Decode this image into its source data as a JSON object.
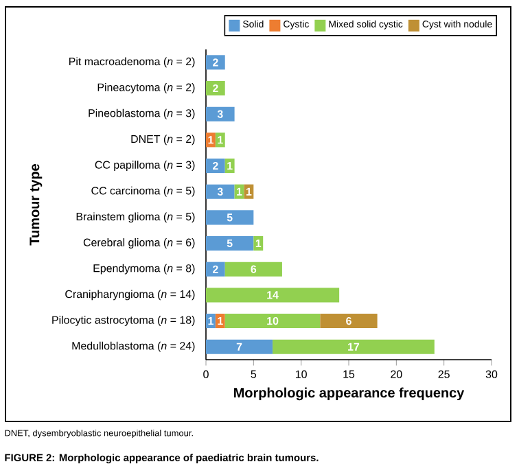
{
  "chart_data": {
    "type": "bar",
    "orientation": "horizontal",
    "stacked": true,
    "categories": [
      "Pit macroadenoma (*n* = 2)",
      "Pineacytoma (*n* = 2)",
      "Pineoblastoma (*n* = 3)",
      "DNET (*n* = 2)",
      "CC papilloma (*n* = 3)",
      "CC carcinoma (*n* = 5)",
      "Brainstem glioma (*n* = 5)",
      "Cerebral glioma (*n* = 6)",
      "Ependymoma (*n* = 8)",
      "Cranipharyngioma (*n* = 14)",
      "Pilocytic astrocytoma (*n* = 18)",
      "Medulloblastoma (*n* = 24)"
    ],
    "series": [
      {
        "name": "Solid",
        "color": "#5b9bd5",
        "values": [
          2,
          null,
          3,
          null,
          2,
          3,
          5,
          5,
          2,
          null,
          1,
          7
        ]
      },
      {
        "name": "Cystic",
        "color": "#ed7d31",
        "values": [
          null,
          null,
          null,
          1,
          null,
          null,
          null,
          null,
          null,
          null,
          1,
          null
        ]
      },
      {
        "name": "Mixed solid cystic",
        "color": "#92d050",
        "values": [
          null,
          2,
          null,
          1,
          1,
          1,
          null,
          1,
          6,
          14,
          10,
          17
        ]
      },
      {
        "name": "Cyst with nodule",
        "color": "#bf9034",
        "values": [
          null,
          null,
          null,
          null,
          null,
          1,
          null,
          null,
          null,
          null,
          6,
          null
        ]
      }
    ],
    "xlim": [
      0,
      30
    ],
    "xticks": [
      0,
      5,
      10,
      15,
      20,
      25,
      30
    ],
    "xlabel": "Morphologic appearance frequency",
    "ylabel": "Tumour type",
    "data_labels": true,
    "legend": "top right",
    "grid": false,
    "annotations": [
      "DNET, dysembryoblastic neuroepithelial tumour.",
      "FIGURE 2: Morphologic appearance of paediatric brain tumours."
    ]
  }
}
